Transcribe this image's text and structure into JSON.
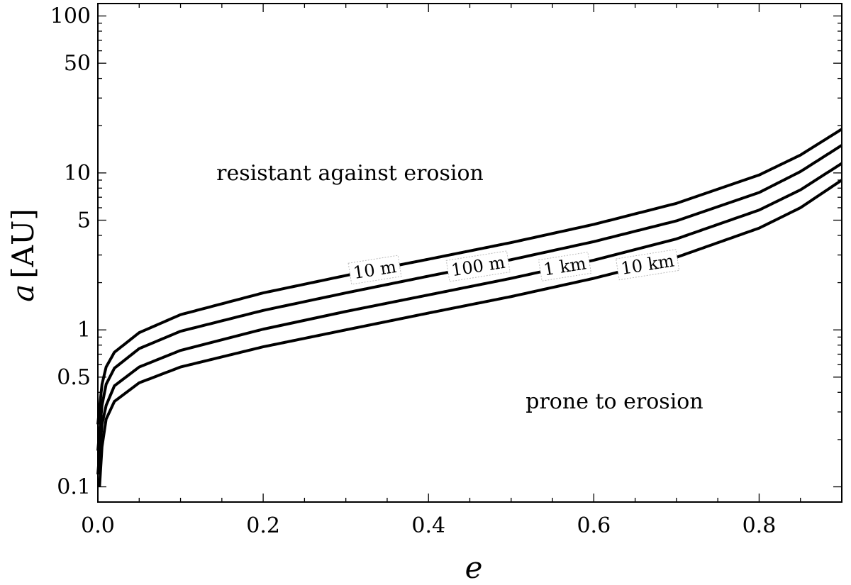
{
  "chart_data": {
    "type": "line",
    "title": "",
    "xlabel": "e",
    "ylabel_var": "a",
    "ylabel_unit": "[AU]",
    "xlim": [
      0,
      0.9
    ],
    "ylim": [
      0.08,
      120
    ],
    "yscale": "log",
    "grid": false,
    "legend": "none",
    "x_ticks": [
      {
        "value": 0.0,
        "label": "0.0"
      },
      {
        "value": 0.2,
        "label": "0.2"
      },
      {
        "value": 0.4,
        "label": "0.4"
      },
      {
        "value": 0.6,
        "label": "0.6"
      },
      {
        "value": 0.8,
        "label": "0.8"
      }
    ],
    "y_ticks": [
      {
        "value": 0.1,
        "label": "0.1"
      },
      {
        "value": 0.5,
        "label": "0.5"
      },
      {
        "value": 1,
        "label": "1"
      },
      {
        "value": 5,
        "label": "5"
      },
      {
        "value": 10,
        "label": "10"
      },
      {
        "value": 50,
        "label": "50"
      },
      {
        "value": 100,
        "label": "100"
      }
    ],
    "series": [
      {
        "name": "10 m",
        "x": [
          0.0,
          0.005,
          0.01,
          0.02,
          0.05,
          0.1,
          0.2,
          0.3,
          0.4,
          0.5,
          0.6,
          0.7,
          0.8,
          0.85,
          0.9
        ],
        "y": [
          0.25,
          0.45,
          0.58,
          0.72,
          0.96,
          1.25,
          1.72,
          2.22,
          2.82,
          3.6,
          4.7,
          6.4,
          9.7,
          13.0,
          19.0
        ]
      },
      {
        "name": "100 m",
        "x": [
          0.0,
          0.005,
          0.01,
          0.02,
          0.05,
          0.1,
          0.2,
          0.3,
          0.4,
          0.5,
          0.6,
          0.7,
          0.8,
          0.85,
          0.9
        ],
        "y": [
          0.17,
          0.33,
          0.45,
          0.57,
          0.76,
          0.98,
          1.33,
          1.72,
          2.2,
          2.8,
          3.65,
          4.95,
          7.5,
          10.2,
          15.0
        ]
      },
      {
        "name": "1 km",
        "x": [
          0.0,
          0.005,
          0.01,
          0.02,
          0.05,
          0.1,
          0.2,
          0.3,
          0.4,
          0.5,
          0.6,
          0.7,
          0.8,
          0.85,
          0.9
        ],
        "y": [
          0.12,
          0.25,
          0.33,
          0.44,
          0.58,
          0.74,
          1.01,
          1.31,
          1.67,
          2.13,
          2.78,
          3.8,
          5.8,
          7.8,
          11.5
        ]
      },
      {
        "name": "10 km",
        "x": [
          0.002,
          0.005,
          0.01,
          0.02,
          0.05,
          0.1,
          0.2,
          0.3,
          0.4,
          0.5,
          0.6,
          0.7,
          0.8,
          0.85,
          0.9
        ],
        "y": [
          0.1,
          0.18,
          0.27,
          0.35,
          0.46,
          0.58,
          0.78,
          1.0,
          1.28,
          1.63,
          2.13,
          2.9,
          4.45,
          6.0,
          9.0
        ]
      }
    ],
    "curve_labels": [
      {
        "series": 0,
        "text": "10 m",
        "x": 0.335,
        "angle": -9
      },
      {
        "series": 1,
        "text": "100 m",
        "x": 0.46,
        "angle": -9
      },
      {
        "series": 2,
        "text": "1 km",
        "x": 0.565,
        "angle": -9
      },
      {
        "series": 3,
        "text": "10 km",
        "x": 0.665,
        "angle": -9
      }
    ],
    "annotations": [
      {
        "text": "resistant against erosion",
        "x": 0.305,
        "y": 10
      },
      {
        "text": "prone to erosion",
        "x": 0.625,
        "y": 0.35
      }
    ]
  }
}
